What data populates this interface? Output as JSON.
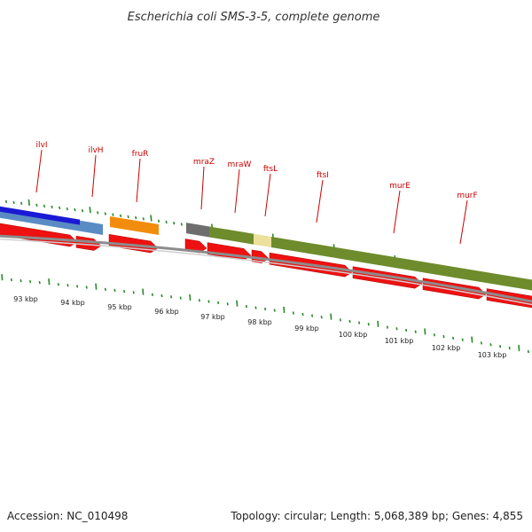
{
  "title": "Escherichia coli SMS-3-5, complete genome",
  "footer": {
    "accession": "Accession: NC_010498",
    "topology": "Topology: circular; Length: 5,068,389 bp; Genes: 4,855"
  },
  "colors": {
    "cds": "#ee1111",
    "gene_label": "#cc0000",
    "tick": "#2a8a2a",
    "backbone": "#999999",
    "ilvI": "#1a1ad4",
    "ilvH": "#5a8cc4",
    "fruR": "#f28c0c",
    "mraZ": "#6e6e6e",
    "ftsL": "#ece09c",
    "dcw": "#6e8c2c"
  },
  "scale_labels": [
    "93 kbp",
    "94 kbp",
    "95 kbp",
    "96 kbp",
    "97 kbp",
    "98 kbp",
    "99 kbp",
    "100 kbp",
    "101 kbp",
    "102 kbp",
    "103 kbp"
  ],
  "gene_labels": [
    "ilvI",
    "ilvH",
    "fruR",
    "mraZ",
    "mraW",
    "ftsL",
    "ftsI",
    "murE",
    "murF"
  ]
}
